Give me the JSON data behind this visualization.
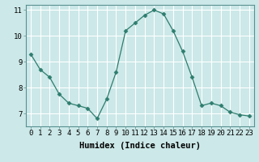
{
  "x": [
    0,
    1,
    2,
    3,
    4,
    5,
    6,
    7,
    8,
    9,
    10,
    11,
    12,
    13,
    14,
    15,
    16,
    17,
    18,
    19,
    20,
    21,
    22,
    23
  ],
  "y": [
    9.3,
    8.7,
    8.4,
    7.75,
    7.4,
    7.3,
    7.2,
    6.8,
    7.55,
    8.6,
    10.2,
    10.5,
    10.8,
    11.0,
    10.85,
    10.2,
    9.4,
    8.4,
    7.3,
    7.4,
    7.3,
    7.05,
    6.95,
    6.9
  ],
  "line_color": "#2e7d6e",
  "marker": "D",
  "marker_size": 2.5,
  "bg_color": "#cce8e8",
  "grid_color": "#ffffff",
  "xlabel": "Humidex (Indice chaleur)",
  "xlim": [
    -0.5,
    23.5
  ],
  "ylim": [
    6.5,
    11.2
  ],
  "yticks": [
    7,
    8,
    9,
    10,
    11
  ],
  "xticks": [
    0,
    1,
    2,
    3,
    4,
    5,
    6,
    7,
    8,
    9,
    10,
    11,
    12,
    13,
    14,
    15,
    16,
    17,
    18,
    19,
    20,
    21,
    22,
    23
  ],
  "tick_label_fontsize": 6.5,
  "xlabel_fontsize": 7.5
}
